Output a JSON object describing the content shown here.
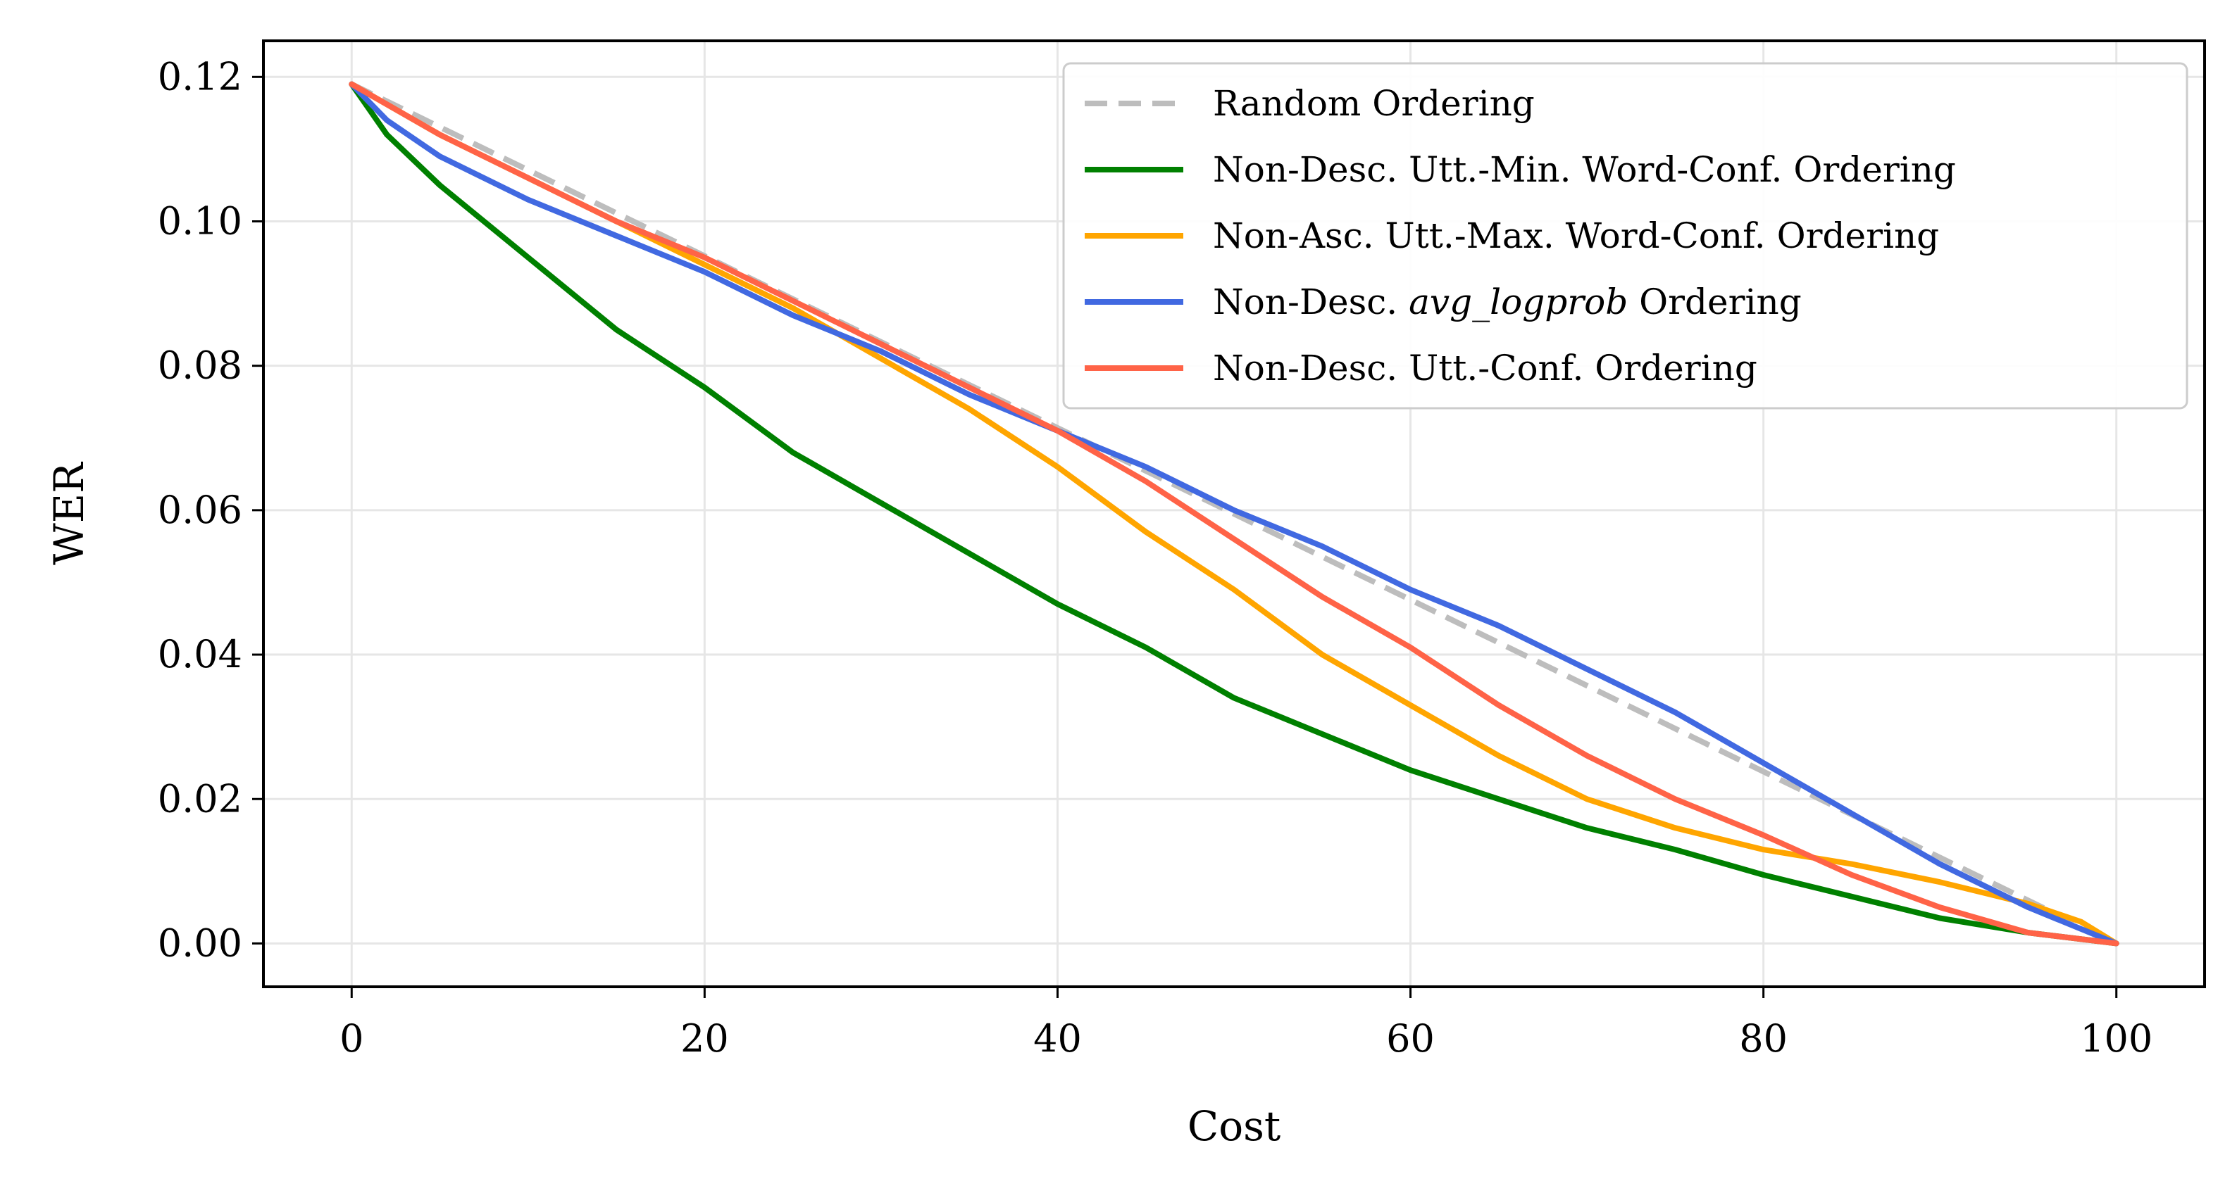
{
  "chart_data": {
    "type": "line",
    "xlabel": "Cost",
    "ylabel": "WER",
    "xlim": [
      -5,
      105
    ],
    "ylim": [
      -0.006,
      0.125
    ],
    "xticks": [
      0,
      20,
      40,
      60,
      80,
      100
    ],
    "yticks": [
      0.0,
      0.02,
      0.04,
      0.06,
      0.08,
      0.1,
      0.12
    ],
    "xtick_labels": [
      "0",
      "20",
      "40",
      "60",
      "80",
      "100"
    ],
    "ytick_labels": [
      "0.00",
      "0.02",
      "0.04",
      "0.06",
      "0.08",
      "0.10",
      "0.12"
    ],
    "grid": true,
    "legend_position": "top-right",
    "series": [
      {
        "name": "Random Ordering",
        "color": "#bdbdbd",
        "style": "dashed",
        "x": [
          0,
          100
        ],
        "y": [
          0.119,
          0.0
        ]
      },
      {
        "name": "Non-Desc. Utt.-Min. Word-Conf. Ordering",
        "color": "#008000",
        "style": "solid",
        "x": [
          0,
          2,
          5,
          10,
          15,
          20,
          25,
          30,
          35,
          40,
          45,
          50,
          55,
          60,
          65,
          70,
          75,
          80,
          85,
          90,
          95,
          100
        ],
        "y": [
          0.119,
          0.112,
          0.105,
          0.095,
          0.085,
          0.077,
          0.068,
          0.061,
          0.054,
          0.047,
          0.041,
          0.034,
          0.029,
          0.024,
          0.02,
          0.016,
          0.013,
          0.0095,
          0.0065,
          0.0035,
          0.0015,
          0.0
        ]
      },
      {
        "name": "Non-Asc. Utt.-Max. Word-Conf. Ordering",
        "color": "#ffa500",
        "style": "solid",
        "x": [
          0,
          5,
          10,
          15,
          20,
          25,
          30,
          35,
          40,
          45,
          50,
          55,
          60,
          65,
          70,
          75,
          80,
          85,
          90,
          95,
          98,
          100
        ],
        "y": [
          0.119,
          0.112,
          0.106,
          0.1,
          0.094,
          0.088,
          0.081,
          0.074,
          0.066,
          0.057,
          0.049,
          0.04,
          0.033,
          0.026,
          0.02,
          0.016,
          0.013,
          0.011,
          0.0085,
          0.0055,
          0.003,
          0.0
        ]
      },
      {
        "name": "Non-Desc. avg_logprob Ordering",
        "color": "#4169e1",
        "style": "solid",
        "x": [
          0,
          2,
          5,
          10,
          15,
          20,
          25,
          30,
          35,
          40,
          45,
          50,
          55,
          60,
          65,
          70,
          75,
          80,
          85,
          90,
          95,
          100
        ],
        "y": [
          0.119,
          0.114,
          0.109,
          0.103,
          0.098,
          0.093,
          0.087,
          0.082,
          0.076,
          0.071,
          0.066,
          0.06,
          0.055,
          0.049,
          0.044,
          0.038,
          0.032,
          0.025,
          0.018,
          0.011,
          0.005,
          0.0
        ]
      },
      {
        "name": "Non-Desc. Utt.-Conf. Ordering",
        "color": "#ff6347",
        "style": "solid",
        "x": [
          0,
          5,
          10,
          15,
          20,
          25,
          30,
          35,
          40,
          45,
          50,
          55,
          60,
          65,
          70,
          75,
          80,
          85,
          90,
          95,
          100
        ],
        "y": [
          0.119,
          0.112,
          0.106,
          0.1,
          0.095,
          0.089,
          0.083,
          0.077,
          0.071,
          0.064,
          0.056,
          0.048,
          0.041,
          0.033,
          0.026,
          0.02,
          0.015,
          0.0095,
          0.005,
          0.0015,
          0.0
        ]
      }
    ],
    "legend": {
      "entries": [
        {
          "prefix": "Random Ordering",
          "italic": "",
          "suffix": ""
        },
        {
          "prefix": "Non-Desc. Utt.-Min. Word-Conf. Ordering",
          "italic": "",
          "suffix": ""
        },
        {
          "prefix": "Non-Asc. Utt.-Max. Word-Conf. Ordering",
          "italic": "",
          "suffix": ""
        },
        {
          "prefix": "Non-Desc. ",
          "italic": "avg_logprob",
          "suffix": " Ordering"
        },
        {
          "prefix": "Non-Desc. Utt.-Conf. Ordering",
          "italic": "",
          "suffix": ""
        }
      ]
    }
  }
}
